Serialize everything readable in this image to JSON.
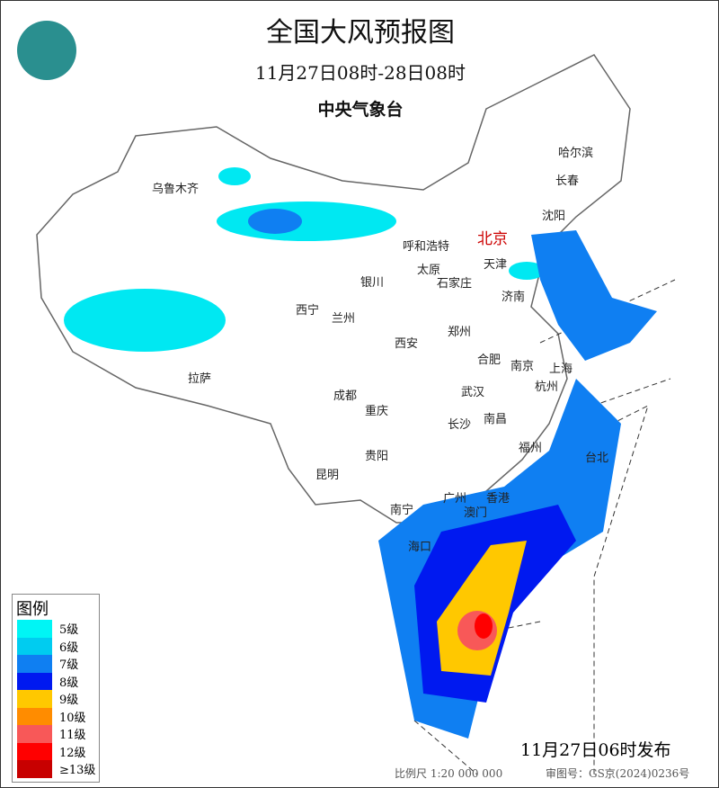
{
  "title": "全国大风预报图",
  "period": "11月27日08时-28日08时",
  "agency": "中央气象台",
  "logo_icon": "cma-dragon-logo",
  "legend": {
    "title": "图例",
    "items": [
      {
        "label": "5级",
        "color": "#00f5f5"
      },
      {
        "label": "6级",
        "color": "#00ccf0"
      },
      {
        "label": "7级",
        "color": "#0f7ff2"
      },
      {
        "label": "8级",
        "color": "#0019f0"
      },
      {
        "label": "9级",
        "color": "#ffc800"
      },
      {
        "label": "10级",
        "color": "#ff8c00"
      },
      {
        "label": "11级",
        "color": "#f85858"
      },
      {
        "label": "12级",
        "color": "#ff0000"
      },
      {
        "label": "≥13级",
        "color": "#c80000"
      }
    ]
  },
  "issued": "11月27日06时发布",
  "scale": "比例尺 1:20 000 000",
  "review_no": "审图号：GS京(2024)0236号",
  "cities": [
    {
      "name": "北京",
      "capital": true
    },
    {
      "name": "乌鲁木齐"
    },
    {
      "name": "哈尔滨"
    },
    {
      "name": "长春"
    },
    {
      "name": "沈阳"
    },
    {
      "name": "呼和浩特"
    },
    {
      "name": "天津"
    },
    {
      "name": "太原"
    },
    {
      "name": "石家庄"
    },
    {
      "name": "济南"
    },
    {
      "name": "银川"
    },
    {
      "name": "西宁"
    },
    {
      "name": "兰州"
    },
    {
      "name": "西安"
    },
    {
      "name": "郑州"
    },
    {
      "name": "合肥"
    },
    {
      "name": "南京"
    },
    {
      "name": "上海"
    },
    {
      "name": "杭州"
    },
    {
      "name": "拉萨"
    },
    {
      "name": "成都"
    },
    {
      "name": "重庆"
    },
    {
      "name": "武汉"
    },
    {
      "name": "长沙"
    },
    {
      "name": "南昌"
    },
    {
      "name": "福州"
    },
    {
      "name": "台北"
    },
    {
      "name": "贵阳"
    },
    {
      "name": "昆明"
    },
    {
      "name": "南宁"
    },
    {
      "name": "广州"
    },
    {
      "name": "香港"
    },
    {
      "name": "澳门"
    },
    {
      "name": "海口"
    }
  ]
}
